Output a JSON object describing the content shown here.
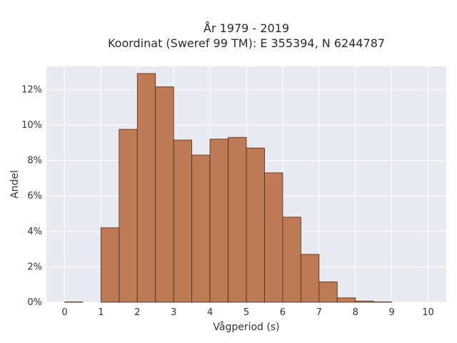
{
  "chart_data": {
    "type": "bar",
    "title_line1": "År 1979 - 2019",
    "title_line2": "Koordinat (Sweref 99 TM): E 355394, N 6244787",
    "xlabel": "Vågperiod (s)",
    "ylabel": "Andel",
    "xlim": [
      -0.5,
      10.5
    ],
    "ylim": [
      0,
      13.3
    ],
    "x_ticks": [
      0,
      1,
      2,
      3,
      4,
      5,
      6,
      7,
      8,
      9,
      10
    ],
    "y_ticks": [
      "0%",
      "2%",
      "4%",
      "6%",
      "8%",
      "10%",
      "12%"
    ],
    "y_tick_values": [
      0,
      2,
      4,
      6,
      8,
      10,
      12
    ],
    "bin_width": 0.5,
    "bins": [
      {
        "x0": 0.0,
        "value": 0.02
      },
      {
        "x0": 0.5,
        "value": 0.0
      },
      {
        "x0": 1.0,
        "value": 4.2
      },
      {
        "x0": 1.5,
        "value": 9.75
      },
      {
        "x0": 2.0,
        "value": 12.9
      },
      {
        "x0": 2.5,
        "value": 12.15
      },
      {
        "x0": 3.0,
        "value": 9.15
      },
      {
        "x0": 3.5,
        "value": 8.3
      },
      {
        "x0": 4.0,
        "value": 9.2
      },
      {
        "x0": 4.5,
        "value": 9.3
      },
      {
        "x0": 5.0,
        "value": 8.7
      },
      {
        "x0": 5.5,
        "value": 7.3
      },
      {
        "x0": 6.0,
        "value": 4.8
      },
      {
        "x0": 6.5,
        "value": 2.7
      },
      {
        "x0": 7.0,
        "value": 1.15
      },
      {
        "x0": 7.5,
        "value": 0.25
      },
      {
        "x0": 8.0,
        "value": 0.07
      },
      {
        "x0": 8.5,
        "value": 0.02
      }
    ],
    "grid": true,
    "colors": {
      "bar_fill": "#bd7a56",
      "bar_edge": "#4a2a1a",
      "plot_bg": "#e9e9f1",
      "grid": "#ffffff"
    }
  }
}
